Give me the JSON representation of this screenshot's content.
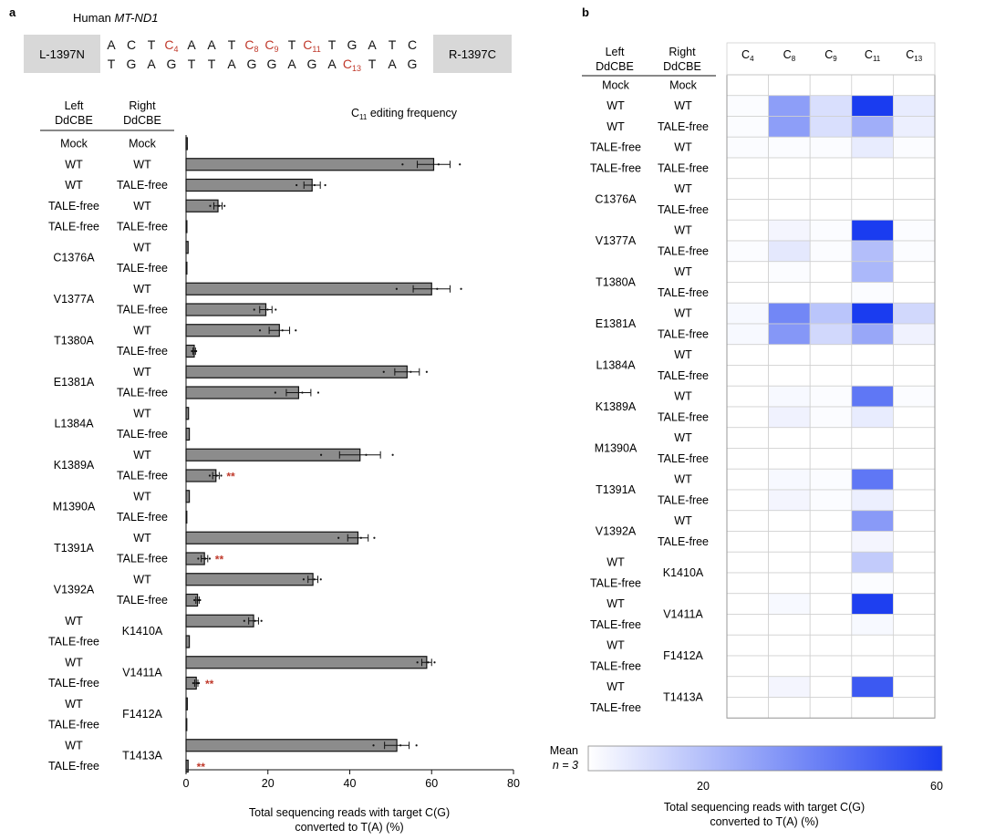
{
  "panel_a": {
    "label": "a",
    "gene_title_prefix": "Human",
    "gene_name": "MT-ND1",
    "left_box": "L-1397N",
    "right_box": "R-1397C",
    "seq_top": [
      {
        "t": "A"
      },
      {
        "t": "C"
      },
      {
        "t": "T"
      },
      {
        "t": "C",
        "sub": "4",
        "red": true
      },
      {
        "t": "A"
      },
      {
        "t": "A"
      },
      {
        "t": "T"
      },
      {
        "t": "C",
        "sub": "8",
        "red": true
      },
      {
        "t": "C",
        "sub": "9",
        "red": true
      },
      {
        "t": "T"
      },
      {
        "t": "C",
        "sub": "11",
        "red": true
      },
      {
        "t": "T"
      },
      {
        "t": "G"
      },
      {
        "t": "A"
      },
      {
        "t": "T"
      },
      {
        "t": "C"
      }
    ],
    "seq_bottom": [
      {
        "t": "T"
      },
      {
        "t": "G"
      },
      {
        "t": "A"
      },
      {
        "t": "G"
      },
      {
        "t": "T"
      },
      {
        "t": "T"
      },
      {
        "t": "A"
      },
      {
        "t": "G"
      },
      {
        "t": "G"
      },
      {
        "t": "A"
      },
      {
        "t": "G"
      },
      {
        "t": "A"
      },
      {
        "t": "C",
        "sub": "13",
        "red": true
      },
      {
        "t": "T"
      },
      {
        "t": "A"
      },
      {
        "t": "G"
      }
    ],
    "col_header_left": [
      "Left",
      "DdCBE"
    ],
    "col_header_right": [
      "Right",
      "DdCBE"
    ],
    "chart_title": "C",
    "chart_title_sub": "11",
    "chart_title_rest": "editing frequency",
    "star_label": "**"
  },
  "panel_b": {
    "label": "b",
    "col_header_left": [
      "Left",
      "DdCBE"
    ],
    "col_header_right": [
      "Right",
      "DdCBE"
    ],
    "columns": [
      {
        "t": "C",
        "sub": "4"
      },
      {
        "t": "C",
        "sub": "8"
      },
      {
        "t": "C",
        "sub": "9"
      },
      {
        "t": "C",
        "sub": "11"
      },
      {
        "t": "C",
        "sub": "13"
      }
    ],
    "legend_mean": "Mean",
    "legend_n": "n = 3",
    "legend_ticks": [
      "20",
      "60"
    ],
    "legend_xlabel": [
      "Total sequencing reads with target C(G)",
      "converted to T(A) (%)"
    ]
  },
  "row_groups": [
    {
      "left": "Mock",
      "right": [
        "Mock"
      ]
    },
    {
      "left": "WT",
      "right": [
        "WT"
      ]
    },
    {
      "left": "WT",
      "right": [
        "TALE-free"
      ]
    },
    {
      "left": "TALE-free",
      "right": [
        "WT"
      ]
    },
    {
      "left": "TALE-free",
      "right": [
        "TALE-free"
      ]
    },
    {
      "left": "C1376A",
      "right": [
        "WT",
        "TALE-free"
      ]
    },
    {
      "left": "V1377A",
      "right": [
        "WT",
        "TALE-free"
      ]
    },
    {
      "left": "T1380A",
      "right": [
        "WT",
        "TALE-free"
      ]
    },
    {
      "left": "E1381A",
      "right": [
        "WT",
        "TALE-free"
      ]
    },
    {
      "left": "L1384A",
      "right": [
        "WT",
        "TALE-free"
      ]
    },
    {
      "left": "K1389A",
      "right": [
        "WT",
        "TALE-free"
      ]
    },
    {
      "left": "M1390A",
      "right": [
        "WT",
        "TALE-free"
      ]
    },
    {
      "left": "T1391A",
      "right": [
        "WT",
        "TALE-free"
      ]
    },
    {
      "left": "V1392A",
      "right": [
        "WT",
        "TALE-free"
      ]
    },
    {
      "left": [
        "WT",
        "TALE-free"
      ],
      "right": "K1410A"
    },
    {
      "left": [
        "WT",
        "TALE-free"
      ],
      "right": "V1411A"
    },
    {
      "left": [
        "WT",
        "TALE-free"
      ],
      "right": "F1412A"
    },
    {
      "left": [
        "WT",
        "TALE-free"
      ],
      "right": "T1413A"
    }
  ],
  "chart_data": [
    {
      "type": "bar",
      "orientation": "horizontal",
      "title": "C11 editing frequency",
      "xlabel": "Total sequencing reads with target C(G) converted to T(A) (%)",
      "ylabel": "",
      "xlim": [
        0,
        80
      ],
      "xticks": [
        0,
        20,
        40,
        60,
        80
      ],
      "categories": [
        "Mock/Mock",
        "WT/WT",
        "WT/TALE-free",
        "TALE-free/WT",
        "TALE-free/TALE-free",
        "C1376A/WT",
        "C1376A/TALE-free",
        "V1377A/WT",
        "V1377A/TALE-free",
        "T1380A/WT",
        "T1380A/TALE-free",
        "E1381A/WT",
        "E1381A/TALE-free",
        "L1384A/WT",
        "L1384A/TALE-free",
        "K1389A/WT",
        "K1389A/TALE-free",
        "M1390A/WT",
        "M1390A/TALE-free",
        "T1391A/WT",
        "T1391A/TALE-free",
        "V1392A/WT",
        "V1392A/TALE-free",
        "WT/K1410A",
        "TALE-free/K1410A",
        "WT/V1411A",
        "TALE-free/V1411A",
        "WT/F1412A",
        "TALE-free/F1412A",
        "WT/T1413A",
        "TALE-free/T1413A"
      ],
      "values": [
        0.3,
        60.5,
        30.8,
        7.8,
        0.2,
        0.5,
        0.2,
        60.0,
        19.5,
        22.8,
        2.0,
        54.0,
        27.5,
        0.6,
        0.8,
        42.5,
        7.3,
        0.8,
        0.1,
        42.0,
        4.5,
        31.0,
        2.8,
        16.5,
        0.8,
        58.8,
        2.5,
        0.3,
        0.1,
        51.5,
        0.5
      ],
      "errors": [
        0.2,
        4,
        2,
        1,
        0.1,
        0.4,
        0.1,
        4.5,
        1.5,
        2.5,
        0.3,
        3,
        3,
        0.3,
        0.6,
        5,
        0.8,
        0.3,
        0.1,
        2.5,
        0.8,
        1.2,
        0.4,
        1.2,
        0.3,
        1.2,
        0.4,
        0.2,
        0.1,
        3,
        0.3
      ],
      "significant": [
        16,
        20,
        26,
        30
      ]
    },
    {
      "type": "heatmap",
      "columns": [
        "C4",
        "C8",
        "C9",
        "C11",
        "C13"
      ],
      "value_range": [
        0,
        60
      ],
      "values": [
        [
          0,
          0,
          0,
          0,
          0
        ],
        [
          1,
          30,
          10,
          60,
          6
        ],
        [
          1,
          30,
          10,
          25,
          5
        ],
        [
          1,
          1,
          1,
          6,
          1
        ],
        [
          0,
          0,
          0,
          0,
          0
        ],
        [
          0,
          0,
          0,
          0,
          0
        ],
        [
          0,
          0,
          0,
          0,
          0
        ],
        [
          0,
          3,
          1,
          60,
          1
        ],
        [
          1,
          7,
          1,
          20,
          1
        ],
        [
          0,
          1,
          0,
          22,
          0
        ],
        [
          0,
          0,
          0,
          1,
          0
        ],
        [
          2,
          37,
          18,
          60,
          12
        ],
        [
          2,
          32,
          12,
          27,
          4
        ],
        [
          0,
          0,
          0,
          0,
          0
        ],
        [
          0,
          0,
          0,
          0,
          0
        ],
        [
          0,
          2,
          1,
          42,
          1
        ],
        [
          0,
          4,
          1,
          6,
          0
        ],
        [
          0,
          0,
          0,
          0,
          0
        ],
        [
          0,
          0,
          0,
          0,
          0
        ],
        [
          0,
          2,
          1,
          42,
          0
        ],
        [
          0,
          3,
          1,
          5,
          0
        ],
        [
          0,
          0,
          0,
          31,
          0
        ],
        [
          0,
          0,
          0,
          3,
          0
        ],
        [
          0,
          0,
          0,
          16,
          0
        ],
        [
          0,
          0,
          0,
          1,
          0
        ],
        [
          0,
          2,
          0,
          59,
          0
        ],
        [
          0,
          0,
          0,
          2,
          0
        ],
        [
          0,
          0,
          0,
          0,
          0
        ],
        [
          0,
          0,
          0,
          0,
          0
        ],
        [
          0,
          3,
          0,
          51,
          0
        ],
        [
          0,
          0,
          0,
          0,
          0
        ]
      ]
    }
  ]
}
